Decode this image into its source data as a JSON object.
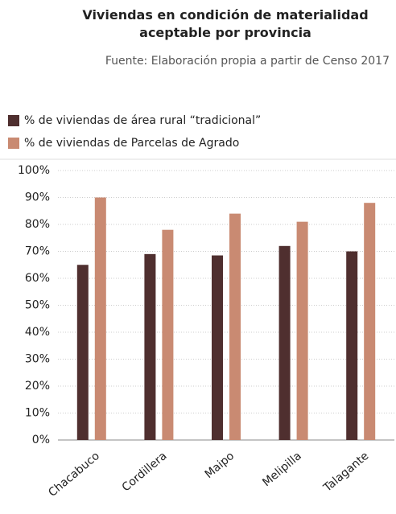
{
  "chart_data": {
    "type": "bar",
    "title": "Viviendas en condición de materialidad aceptable por provincia",
    "subtitle": "Fuente: Elaboración propia a partir de Censo 2017",
    "categories": [
      "Chacabuco",
      "Cordillera",
      "Maipo",
      "Melipilla",
      "Talagante"
    ],
    "series": [
      {
        "name": "% de viviendas de área rural “tradicional”",
        "color": "#4f2f2f",
        "values": [
          65,
          69,
          68.5,
          72,
          70
        ]
      },
      {
        "name": "% de viviendas de Parcelas de Agrado",
        "color": "#c98a72",
        "values": [
          90,
          78,
          84,
          81,
          88
        ]
      }
    ],
    "ylim": [
      0,
      100
    ],
    "yticks": [
      {
        "value": 0,
        "label": "0%"
      },
      {
        "value": 10,
        "label": "10%"
      },
      {
        "value": 20,
        "label": "20%"
      },
      {
        "value": 30,
        "label": "30%"
      },
      {
        "value": 40,
        "label": "40%"
      },
      {
        "value": 50,
        "label": "50%"
      },
      {
        "value": 60,
        "label": "60%"
      },
      {
        "value": 70,
        "label": "70%"
      },
      {
        "value": 80,
        "label": "80%"
      },
      {
        "value": 90,
        "label": "90%"
      },
      {
        "value": 100,
        "label": "100%"
      }
    ],
    "grid": true,
    "legend": "top-left"
  }
}
